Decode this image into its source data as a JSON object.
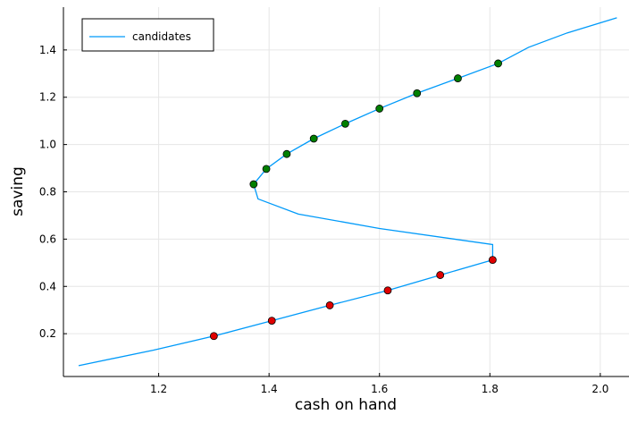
{
  "chart_data": {
    "type": "line",
    "x_label": "cash on hand",
    "y_label": "saving",
    "xlim": [
      1.0275,
      2.052
    ],
    "ylim": [
      0.019,
      1.581
    ],
    "xticks": [
      1.2,
      1.4,
      1.6,
      1.8,
      {
        "value": 2.0,
        "label": "2.0"
      }
    ],
    "yticks": [
      0.2,
      0.4,
      0.6,
      0.8,
      {
        "value": 1.0,
        "label": "1.0"
      },
      1.2,
      1.4
    ],
    "grid": true,
    "legend": "top-left",
    "series": [
      {
        "name": "candidates",
        "color": "#009af9",
        "type": "line",
        "x": [
          1.055,
          1.19,
          1.3,
          1.405,
          1.51,
          1.615,
          1.71,
          1.805,
          1.805,
          1.6,
          1.453,
          1.38,
          1.372,
          1.395,
          1.432,
          1.481,
          1.538,
          1.6,
          1.668,
          1.742,
          1.815,
          1.87,
          1.94,
          2.03
        ],
        "values": [
          0.065,
          0.13,
          0.19,
          0.255,
          0.32,
          0.383,
          0.448,
          0.512,
          0.577,
          0.645,
          0.706,
          0.77,
          0.832,
          0.897,
          0.96,
          1.025,
          1.088,
          1.152,
          1.217,
          1.28,
          1.343,
          1.411,
          1.472,
          1.536
        ]
      },
      {
        "color": "#008000",
        "type": "scatter",
        "x": [
          1.372,
          1.395,
          1.432,
          1.481,
          1.538,
          1.6,
          1.668,
          1.742,
          1.815
        ],
        "values": [
          0.832,
          0.897,
          0.96,
          1.025,
          1.088,
          1.152,
          1.217,
          1.28,
          1.343
        ]
      },
      {
        "color": "#e00000",
        "type": "scatter",
        "x": [
          1.3,
          1.405,
          1.51,
          1.615,
          1.71,
          1.805
        ],
        "values": [
          0.19,
          0.255,
          0.32,
          0.383,
          0.448,
          0.512
        ]
      }
    ]
  }
}
